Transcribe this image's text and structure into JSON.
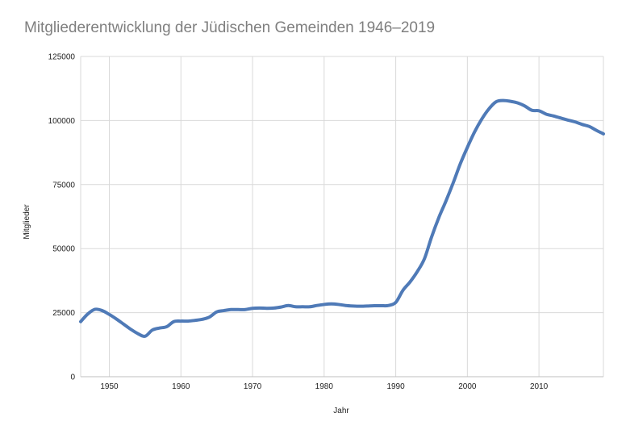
{
  "chart_data": {
    "type": "line",
    "title": "Mitgliederentwicklung der Jüdischen Gemeinden 1946–2019",
    "xlabel": "Jahr",
    "ylabel": "Mitglieder",
    "xlim": [
      1946,
      2019
    ],
    "ylim": [
      0,
      125000
    ],
    "x_ticks": [
      "1950",
      "1960",
      "1970",
      "1980",
      "1990",
      "2000",
      "2010"
    ],
    "y_ticks": [
      "0",
      "25000",
      "50000",
      "75000",
      "100000",
      "125000"
    ],
    "grid": true,
    "legend": "none",
    "series": [
      {
        "color": "#4f7ab7",
        "x": [
          1946,
          1947,
          1948,
          1949,
          1950,
          1951,
          1952,
          1953,
          1954,
          1955,
          1956,
          1957,
          1958,
          1959,
          1960,
          1961,
          1962,
          1963,
          1964,
          1965,
          1966,
          1967,
          1968,
          1969,
          1970,
          1971,
          1972,
          1973,
          1974,
          1975,
          1976,
          1977,
          1978,
          1979,
          1980,
          1981,
          1982,
          1983,
          1984,
          1985,
          1986,
          1987,
          1988,
          1989,
          1990,
          1991,
          1992,
          1993,
          1994,
          1995,
          1996,
          1997,
          1998,
          1999,
          2000,
          2001,
          2002,
          2003,
          2004,
          2005,
          2006,
          2007,
          2008,
          2009,
          2010,
          2011,
          2012,
          2013,
          2014,
          2015,
          2016,
          2017,
          2018,
          2019
        ],
        "y": [
          21500,
          24500,
          26300,
          25800,
          24300,
          22500,
          20500,
          18500,
          16800,
          15800,
          18200,
          19000,
          19500,
          21500,
          21700,
          21700,
          22000,
          22400,
          23300,
          25300,
          25800,
          26200,
          26200,
          26200,
          26700,
          26800,
          26700,
          26800,
          27200,
          27800,
          27300,
          27300,
          27300,
          27800,
          28200,
          28400,
          28200,
          27800,
          27600,
          27500,
          27600,
          27700,
          27700,
          27800,
          29000,
          33700,
          37000,
          41000,
          46000,
          54500,
          62000,
          68500,
          75500,
          83000,
          89500,
          95500,
          100500,
          104500,
          107300,
          107800,
          107500,
          106900,
          105700,
          104000,
          103800,
          102500,
          101800,
          101000,
          100200,
          99500,
          98500,
          97700,
          96200,
          94800
        ]
      }
    ]
  }
}
